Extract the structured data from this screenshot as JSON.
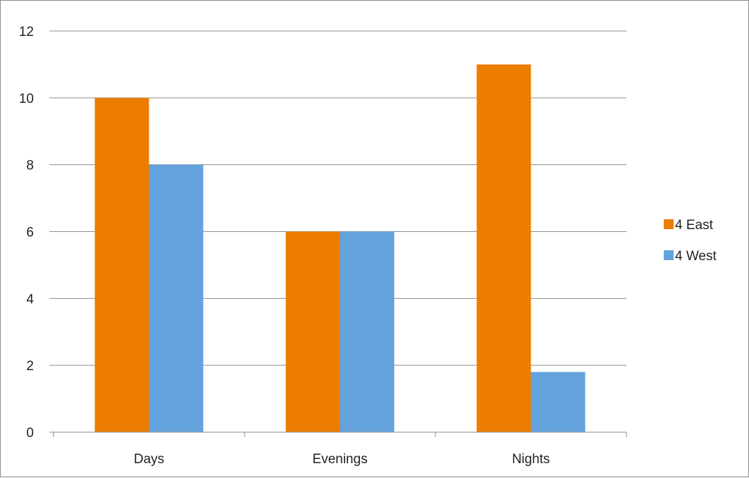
{
  "chart_data": {
    "type": "bar",
    "title": "",
    "xlabel": "",
    "ylabel": "",
    "categories": [
      "Days",
      "Evenings",
      "Nights"
    ],
    "series": [
      {
        "name": "4 East",
        "values": [
          10,
          6,
          11
        ],
        "color": "#ED7D00"
      },
      {
        "name": "4 West",
        "values": [
          8,
          6,
          1.8
        ],
        "color": "#64A2DD"
      }
    ],
    "ylim": [
      0,
      12
    ],
    "yticks": [
      0,
      2,
      4,
      6,
      8,
      10,
      12
    ],
    "grid": true,
    "legend": "right"
  }
}
